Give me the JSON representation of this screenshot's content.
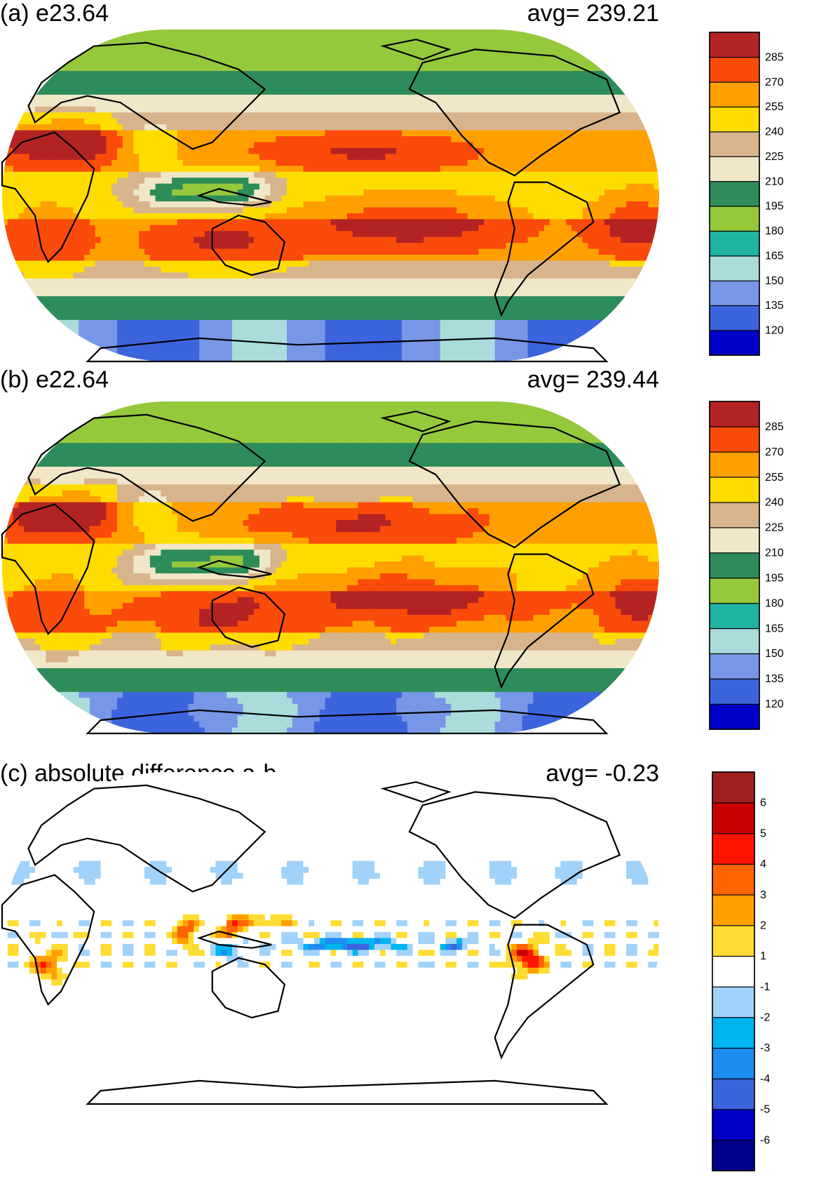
{
  "chart_data": [
    {
      "type": "heatmap",
      "panel": "(a)",
      "title": "(a) e23.64",
      "avg_label": "avg=  239.21",
      "avg": 239.21,
      "colorbar": {
        "levels": [
          120,
          135,
          150,
          165,
          180,
          195,
          210,
          225,
          240,
          255,
          270,
          285
        ],
        "labels": [
          "120",
          "135",
          "150",
          "165",
          "180",
          "195",
          "210",
          "225",
          "240",
          "255",
          "270",
          "285"
        ],
        "colors": [
          "#0000c8",
          "#3c64dc",
          "#7896e6",
          "#aadcdc",
          "#1eb4a0",
          "#96c83c",
          "#2d8c5a",
          "#f0e6c8",
          "#d7b48c",
          "#ffdc00",
          "#ffa000",
          "#fa4b0a",
          "#b42323"
        ]
      }
    },
    {
      "type": "heatmap",
      "panel": "(b)",
      "title": "(b) e22.64",
      "avg_label": "avg=  239.44",
      "avg": 239.44,
      "colorbar": {
        "levels": [
          120,
          135,
          150,
          165,
          180,
          195,
          210,
          225,
          240,
          255,
          270,
          285
        ],
        "labels": [
          "120",
          "135",
          "150",
          "165",
          "180",
          "195",
          "210",
          "225",
          "240",
          "255",
          "270",
          "285"
        ],
        "colors": [
          "#0000c8",
          "#3c64dc",
          "#7896e6",
          "#aadcdc",
          "#1eb4a0",
          "#96c83c",
          "#2d8c5a",
          "#f0e6c8",
          "#d7b48c",
          "#ffdc00",
          "#ffa000",
          "#fa4b0a",
          "#b42323"
        ]
      }
    },
    {
      "type": "heatmap",
      "panel": "(c)",
      "title": "(c) absolute difference a-b",
      "avg_label": "avg=   -0.23",
      "avg": -0.23,
      "colorbar": {
        "levels": [
          -6,
          -5,
          -4,
          -3,
          -2,
          -1,
          1,
          2,
          3,
          4,
          5,
          6
        ],
        "labels": [
          "-6",
          "-5",
          "-4",
          "-3",
          "-2",
          "-1",
          "1",
          "2",
          "3",
          "4",
          "5",
          "6"
        ],
        "colors": [
          "#00008c",
          "#0000c8",
          "#3c64dc",
          "#1e8cf0",
          "#00b4f0",
          "#a0d2fa",
          "#ffffff",
          "#ffdc32",
          "#ffa000",
          "#ff6400",
          "#ff1400",
          "#c80000",
          "#a01e1e"
        ]
      }
    }
  ]
}
